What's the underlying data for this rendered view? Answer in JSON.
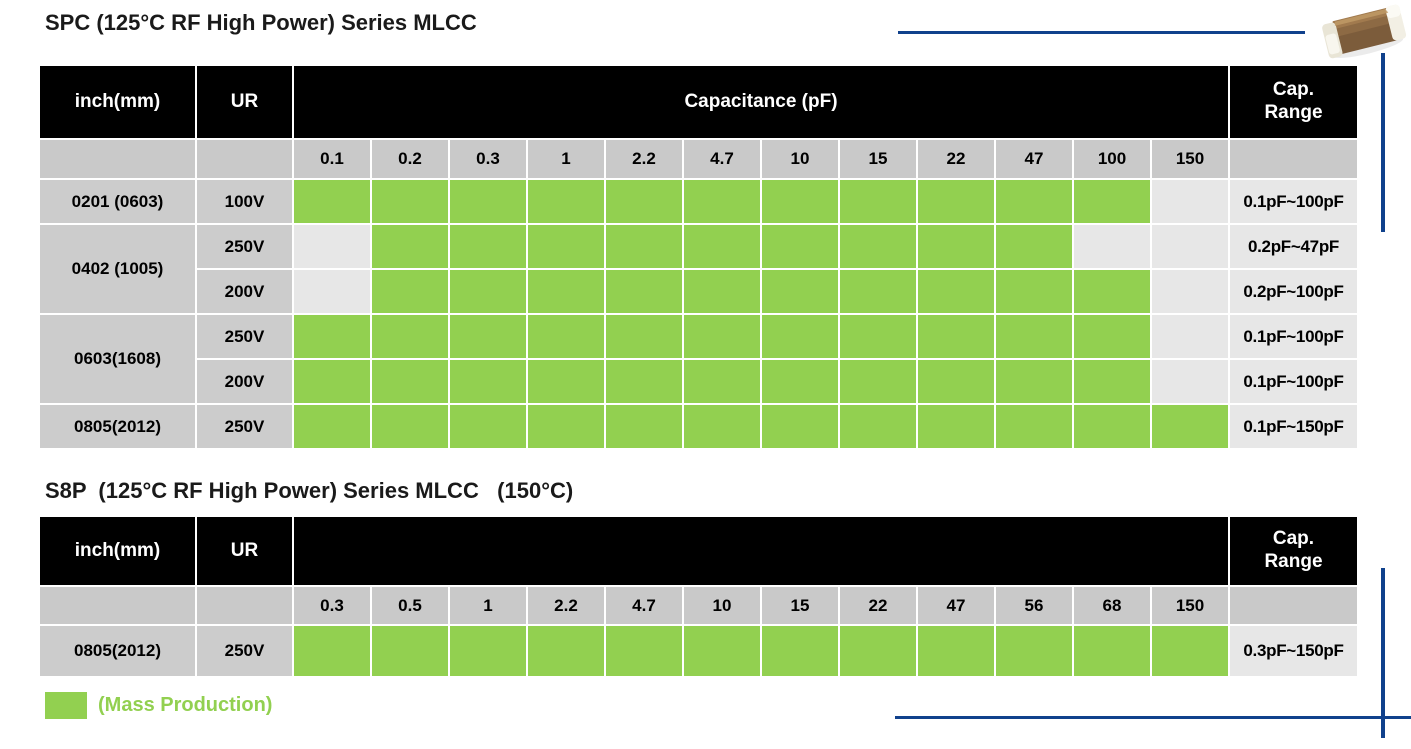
{
  "page": {
    "title_spc": "SPC (125°C RF High Power) Series MLCC",
    "title_s8p": "S8P  (125°C RF High Power) Series MLCC   (150°C)",
    "legend_label": "(Mass Production)"
  },
  "colors": {
    "green_mass_production": "#92d050",
    "accent_navy": "#10418c",
    "header_bg": "#000000",
    "subheader_bg": "#c9c9c9",
    "label_bg": "#cccccc",
    "unavailable_bg": "#e7e7e7"
  },
  "icons": {
    "chip": "mlcc-chip-photo"
  },
  "tables": [
    {
      "name": "spc",
      "headers": {
        "inch": "inch(mm)",
        "ur": "UR",
        "capacitance": "Capacitance (pF)",
        "cap_range": "Cap.\nRange"
      },
      "cap_columns": [
        "0.1",
        "0.2",
        "0.3",
        "1",
        "2.2",
        "4.7",
        "10",
        "15",
        "22",
        "47",
        "100",
        "150"
      ],
      "rows": [
        {
          "inch": "0201 (0603)",
          "inch_span": 1,
          "ur": "100V",
          "cells": [
            1,
            1,
            1,
            1,
            1,
            1,
            1,
            1,
            1,
            1,
            1,
            0
          ],
          "range": "0.1pF~100pF"
        },
        {
          "inch": "0402 (1005)",
          "inch_span": 2,
          "ur": "250V",
          "cells": [
            0,
            1,
            1,
            1,
            1,
            1,
            1,
            1,
            1,
            1,
            0,
            0
          ],
          "range": "0.2pF~47pF"
        },
        {
          "inch": null,
          "inch_span": 0,
          "ur": "200V",
          "cells": [
            0,
            1,
            1,
            1,
            1,
            1,
            1,
            1,
            1,
            1,
            1,
            0
          ],
          "range": "0.2pF~100pF"
        },
        {
          "inch": "0603(1608)",
          "inch_span": 2,
          "ur": "250V",
          "cells": [
            1,
            1,
            1,
            1,
            1,
            1,
            1,
            1,
            1,
            1,
            1,
            0
          ],
          "range": "0.1pF~100pF"
        },
        {
          "inch": null,
          "inch_span": 0,
          "ur": "200V",
          "cells": [
            1,
            1,
            1,
            1,
            1,
            1,
            1,
            1,
            1,
            1,
            1,
            0
          ],
          "range": "0.1pF~100pF"
        },
        {
          "inch": "0805(2012)",
          "inch_span": 1,
          "ur": "250V",
          "cells": [
            1,
            1,
            1,
            1,
            1,
            1,
            1,
            1,
            1,
            1,
            1,
            1
          ],
          "range": "0.1pF~150pF"
        }
      ]
    },
    {
      "name": "s8p",
      "headers": {
        "inch": "inch(mm)",
        "ur": "UR",
        "capacitance": "",
        "cap_range": "Cap.\nRange"
      },
      "cap_columns": [
        "0.3",
        "0.5",
        "1",
        "2.2",
        "4.7",
        "10",
        "15",
        "22",
        "47",
        "56",
        "68",
        "150"
      ],
      "rows": [
        {
          "inch": "0805(2012)",
          "inch_span": 1,
          "ur": "250V",
          "cells": [
            1,
            1,
            1,
            1,
            1,
            1,
            1,
            1,
            1,
            1,
            1,
            1
          ],
          "range": "0.3pF~150pF"
        }
      ]
    }
  ]
}
